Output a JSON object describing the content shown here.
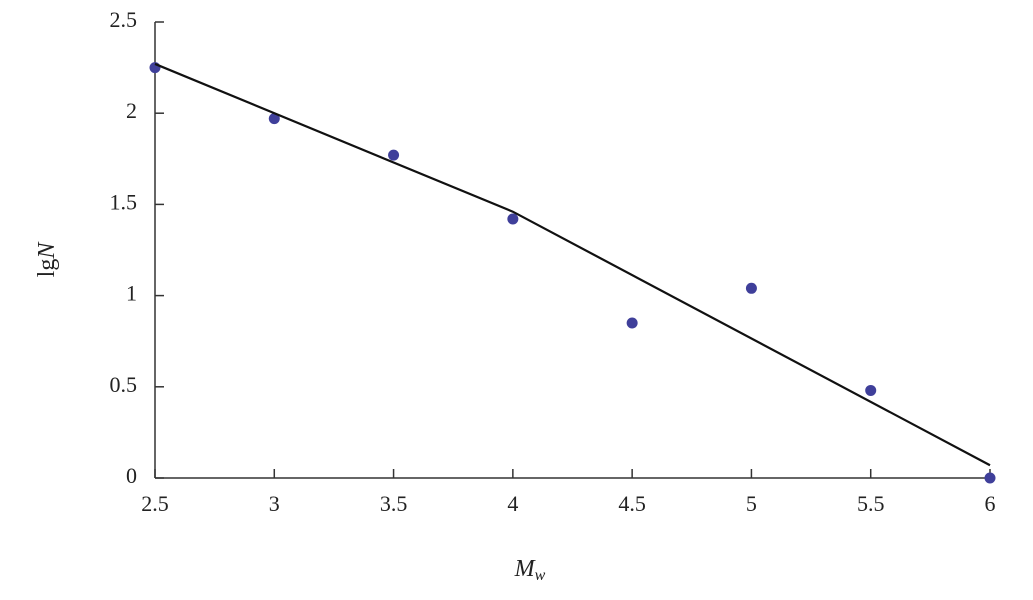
{
  "chart_data": {
    "type": "scatter",
    "xlabel": {
      "main": "M",
      "sub": "w"
    },
    "ylabel": {
      "plain": "lg",
      "italic": "N"
    },
    "xlim": [
      2.5,
      6
    ],
    "xticks": [
      2.5,
      3,
      3.5,
      4,
      4.5,
      5,
      5.5,
      6
    ],
    "ylim": [
      0,
      2.5
    ],
    "yticks": [
      0,
      0.5,
      1,
      1.5,
      2,
      2.5
    ],
    "series": [
      {
        "type": "scatter",
        "color": "#3f3f9a",
        "x": [
          2.5,
          3,
          3.5,
          4,
          4.5,
          5,
          5.5,
          6
        ],
        "values": [
          2.25,
          1.97,
          1.77,
          1.42,
          0.85,
          1.04,
          0.48,
          0
        ]
      },
      {
        "type": "line",
        "color": "#111111",
        "x": [
          2.5,
          4,
          6
        ],
        "values": [
          2.27,
          1.46,
          0.07
        ]
      }
    ]
  }
}
